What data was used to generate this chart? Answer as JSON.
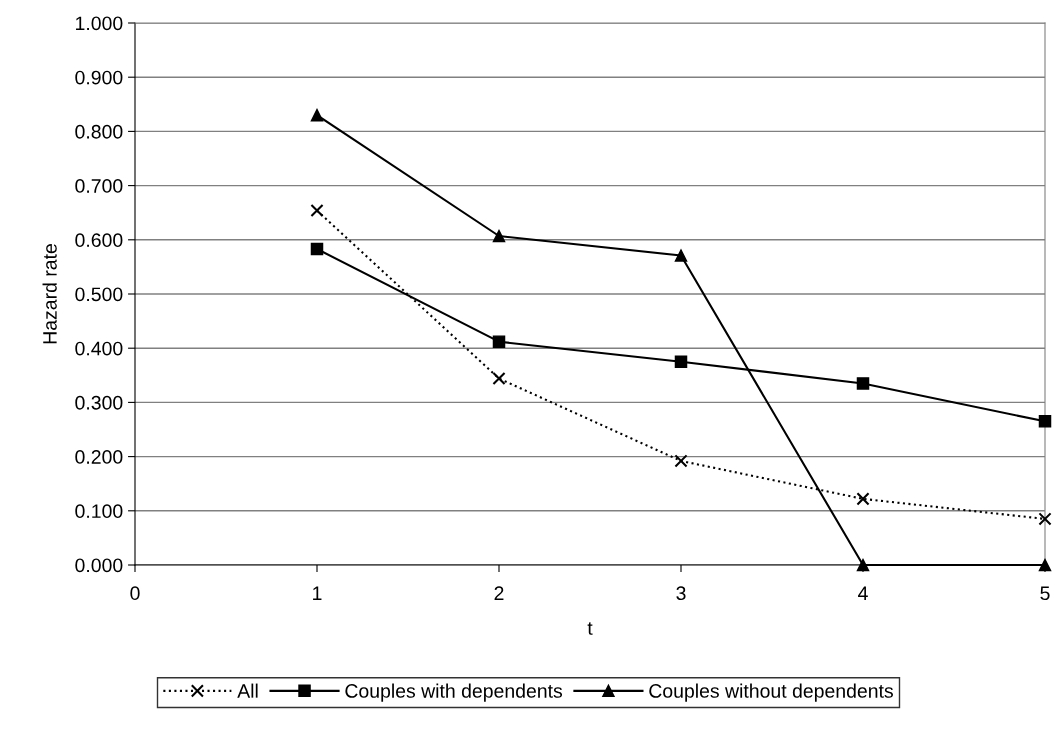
{
  "chart_data": {
    "type": "line",
    "xlabel": "t",
    "ylabel": "Hazard rate",
    "x": [
      1,
      2,
      3,
      4,
      5
    ],
    "series": [
      {
        "name": "All",
        "color": "#000000",
        "values": [
          0.654,
          0.344,
          0.192,
          0.122,
          0.085
        ],
        "marker": "cross",
        "line_style": "dotted"
      },
      {
        "name": "Couples with dependents",
        "color": "#000000",
        "values": [
          0.583,
          0.412,
          0.375,
          0.335,
          0.265
        ],
        "marker": "square",
        "line_style": "solid"
      },
      {
        "name": "Couples without dependents",
        "color": "#000000",
        "values": [
          0.83,
          0.607,
          0.571,
          0.0,
          0.0
        ],
        "marker": "triangle",
        "line_style": "solid"
      }
    ],
    "xlim": [
      0,
      5
    ],
    "xticks": [
      0,
      1,
      2,
      3,
      4,
      5
    ],
    "ylim": [
      0,
      1
    ],
    "yticks": [
      {
        "value": 0,
        "label": "0.000"
      },
      {
        "value": 0.1,
        "label": "0.100"
      },
      {
        "value": 0.2,
        "label": "0.200"
      },
      {
        "value": 0.3,
        "label": "0.300"
      },
      {
        "value": 0.4,
        "label": "0.400"
      },
      {
        "value": 0.5,
        "label": "0.500"
      },
      {
        "value": 0.6,
        "label": "0.600"
      },
      {
        "value": 0.7,
        "label": "0.700"
      },
      {
        "value": 0.8,
        "label": "0.800"
      },
      {
        "value": 0.9,
        "label": "0.900"
      },
      {
        "value": 1,
        "label": "1.000"
      }
    ],
    "grid": "y",
    "legend": "bottom"
  }
}
